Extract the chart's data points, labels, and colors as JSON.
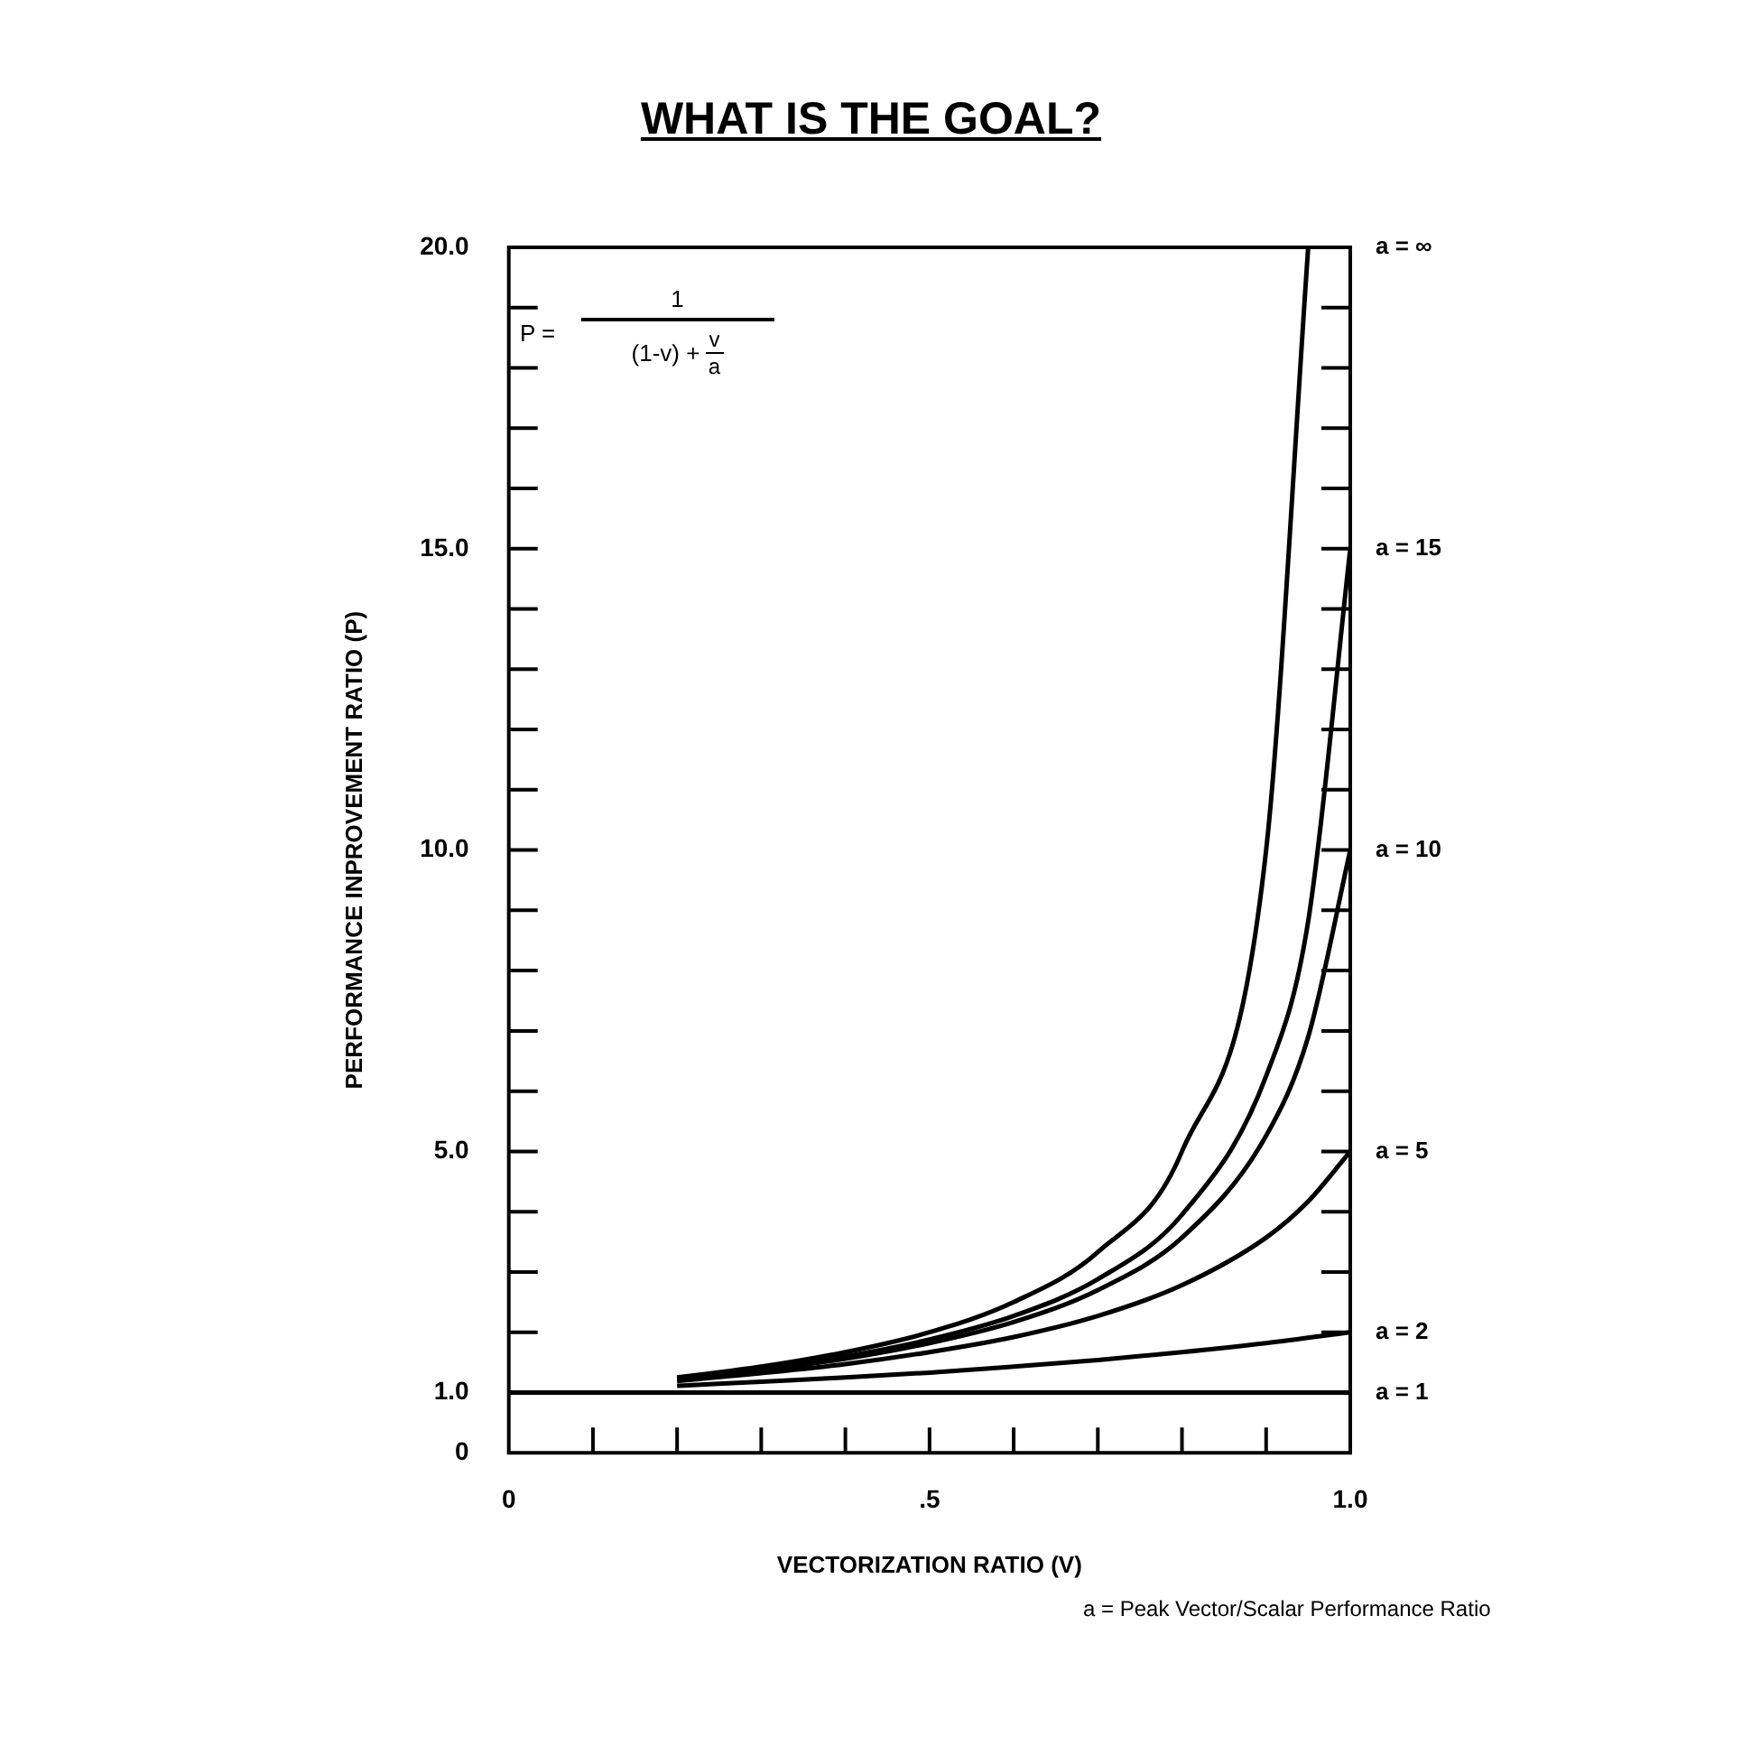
{
  "chart_data": {
    "type": "line",
    "title": "WHAT IS THE GOAL?",
    "xlabel": "VECTORIZATION RATIO (V)",
    "ylabel": "PERFORMANCE INPROVEMENT RATIO (P)",
    "annotations": [
      "P =",
      "1",
      "(1-v) +",
      "v",
      "a",
      "a = Peak Vector/Scalar Performance Ratio"
    ],
    "xlim": [
      0,
      1
    ],
    "ylim": [
      0,
      20
    ],
    "xticks": [
      0,
      {
        "value": 0.1,
        "label": null
      },
      {
        "value": 0.2,
        "label": null
      },
      {
        "value": 0.3,
        "label": null
      },
      {
        "value": 0.4,
        "label": null
      },
      {
        "value": 0.5,
        "label": ".5"
      },
      {
        "value": 0.6,
        "label": null
      },
      {
        "value": 0.7,
        "label": null
      },
      {
        "value": 0.8,
        "label": null
      },
      {
        "value": 0.9,
        "label": null
      },
      {
        "value": 1,
        "label": "1.0"
      }
    ],
    "yticks": [
      0,
      {
        "value": 1,
        "label": "1.0"
      },
      {
        "value": 2,
        "label": null
      },
      {
        "value": 3,
        "label": null
      },
      {
        "value": 4,
        "label": null
      },
      {
        "value": 5,
        "label": "5.0"
      },
      {
        "value": 6,
        "label": null
      },
      {
        "value": 7,
        "label": null
      },
      {
        "value": 8,
        "label": null
      },
      {
        "value": 9,
        "label": null
      },
      {
        "value": 10,
        "label": "10.0"
      },
      {
        "value": 11,
        "label": null
      },
      {
        "value": 12,
        "label": null
      },
      {
        "value": 13,
        "label": null
      },
      {
        "value": 14,
        "label": null
      },
      {
        "value": 15,
        "label": "15.0"
      },
      {
        "value": 16,
        "label": null
      },
      {
        "value": 17,
        "label": null
      },
      {
        "value": 18,
        "label": null
      },
      {
        "value": 19,
        "label": null
      },
      {
        "value": 20,
        "label": "20.0"
      }
    ],
    "grid": false,
    "legend": "right",
    "marker": "none",
    "line_style": "solid",
    "series": [
      {
        "name": "a = ∞",
        "color": "#000000",
        "x": [
          0.2,
          0.3,
          0.4,
          0.5,
          0.6,
          0.7,
          0.8,
          0.9,
          0.95
        ],
        "values": [
          1.25,
          1.43,
          1.67,
          2,
          2.5,
          3.33,
          5,
          10,
          20
        ]
      },
      {
        "name": "a = 15",
        "color": "#000000",
        "x": [
          0.2,
          0.3,
          0.4,
          0.5,
          0.6,
          0.7,
          0.8,
          0.9,
          0.95,
          1
        ],
        "values": [
          1.23,
          1.39,
          1.6,
          1.88,
          2.27,
          2.88,
          3.95,
          6.25,
          8.82,
          15
        ]
      },
      {
        "name": "a = 10",
        "color": "#000000",
        "x": [
          0.2,
          0.3,
          0.4,
          0.5,
          0.6,
          0.7,
          0.8,
          0.9,
          0.95,
          1
        ],
        "values": [
          1.22,
          1.37,
          1.56,
          1.82,
          2.17,
          2.7,
          3.57,
          5.26,
          6.9,
          10
        ]
      },
      {
        "name": "a = 5",
        "color": "#000000",
        "x": [
          0.2,
          0.3,
          0.4,
          0.5,
          0.6,
          0.7,
          0.8,
          0.9,
          0.95,
          1
        ],
        "values": [
          1.19,
          1.32,
          1.47,
          1.67,
          1.92,
          2.27,
          2.78,
          3.57,
          4.17,
          5
        ]
      },
      {
        "name": "a = 2",
        "color": "#000000",
        "x": [
          0.2,
          0.3,
          0.4,
          0.5,
          0.6,
          0.7,
          0.8,
          0.9,
          1
        ],
        "values": [
          1.11,
          1.18,
          1.25,
          1.33,
          1.43,
          1.54,
          1.67,
          1.82,
          2
        ]
      },
      {
        "name": "a = 1",
        "color": "#000000",
        "x": [
          0,
          1
        ],
        "values": [
          1,
          1
        ]
      }
    ]
  }
}
